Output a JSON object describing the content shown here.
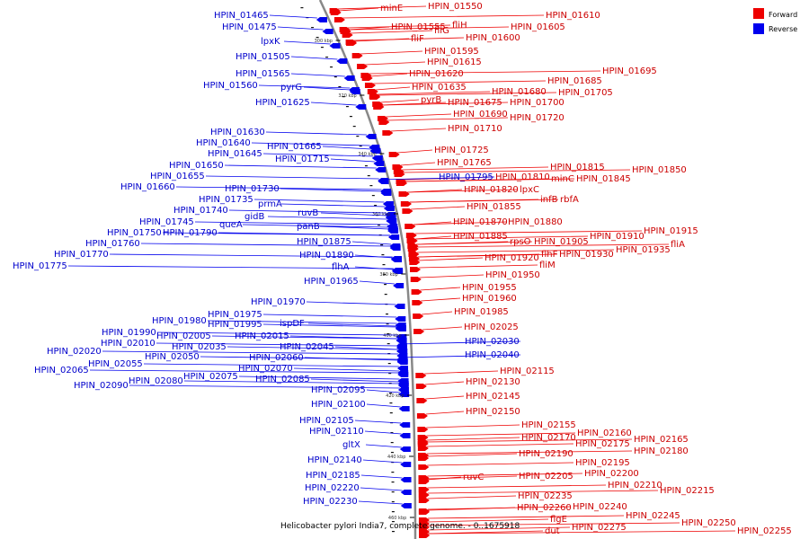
{
  "legend": {
    "forward": {
      "label": "Forward",
      "color": "#ee0000"
    },
    "reverse": {
      "label": "Reverse",
      "color": "#0000ee"
    }
  },
  "caption": "Helicobacter pylori India7, complete genome. - 0..1675918",
  "ticks": [
    "300 kbp",
    "320 kbp",
    "340 kbp",
    "360 kbp",
    "380 kbp",
    "400 kbp",
    "420 kbp",
    "440 kbp",
    "460 kbp"
  ],
  "forward_genes": [
    "minE",
    "HPIN_01550",
    "HPIN_01555",
    "fliG",
    "fliH",
    "fliF",
    "HPIN_01600",
    "HPIN_01610",
    "HPIN_01605",
    "HPIN_01595",
    "HPIN_01615",
    "HPIN_01620",
    "HPIN_01635",
    "HPIN_01695",
    "HPIN_01685",
    "HPIN_01680",
    "HPIN_01705",
    "pyrB",
    "HPIN_01675",
    "HPIN_01700",
    "HPIN_01690",
    "HPIN_01720",
    "HPIN_01710",
    "HPIN_01725",
    "HPIN_01765",
    "HPIN_01815",
    "HPIN_01850",
    "HPIN_01810",
    "minC",
    "HPIN_01845",
    "HPIN_01820",
    "lpxC",
    "infB",
    "rbfA",
    "HPIN_01855",
    "HPIN_01870",
    "HPIN_01880",
    "HPIN_01885",
    "HPIN_01915",
    "HPIN_01910",
    "rpsO",
    "HPIN_01905",
    "fliA",
    "flhF",
    "HPIN_01935",
    "HPIN_01920",
    "HPIN_01930",
    "fliM",
    "HPIN_01950",
    "HPIN_01955",
    "HPIN_01960",
    "HPIN_01985",
    "HPIN_02025",
    "HPIN_02115",
    "HPIN_02130",
    "HPIN_02145",
    "HPIN_02150",
    "HPIN_02155",
    "HPIN_02160",
    "HPIN_02170",
    "HPIN_02165",
    "HPIN_02175",
    "HPIN_02180",
    "HPIN_02190",
    "HPIN_02195",
    "ruvC",
    "HPIN_02205",
    "HPIN_02200",
    "HPIN_02210",
    "HPIN_02215",
    "HPIN_02235",
    "HPIN_02260",
    "HPIN_02240",
    "HPIN_02245",
    "flgE",
    "HPIN_02250",
    "HPIN_02275",
    "HPIN_02255",
    "dut"
  ],
  "reverse_genes": [
    "HPIN_01465",
    "HPIN_01475",
    "lpxK",
    "HPIN_01505",
    "HPIN_01565",
    "HPIN_01560",
    "pyrG",
    "HPIN_01625",
    "HPIN_01630",
    "HPIN_01640",
    "HPIN_01645",
    "HPIN_01665",
    "HPIN_01650",
    "HPIN_01715",
    "HPIN_01655",
    "HPIN_01660",
    "HPIN_01730",
    "HPIN_01735",
    "prmA",
    "HPIN_01740",
    "gidB",
    "ruvB",
    "HPIN_01745",
    "queA",
    "panB",
    "HPIN_01750",
    "HPIN_01790",
    "HPIN_01760",
    "HPIN_01770",
    "HPIN_01775",
    "HPIN_01795",
    "HPIN_01875",
    "HPIN_01890",
    "flhA",
    "HPIN_01965",
    "HPIN_01970",
    "HPIN_01975",
    "HPIN_01980",
    "HPIN_01995",
    "ispDF",
    "HPIN_01990",
    "HPIN_02005",
    "HPIN_02015",
    "HPIN_02010",
    "HPIN_02035",
    "HPIN_02045",
    "HPIN_02020",
    "HPIN_02050",
    "HPIN_02060",
    "HPIN_02055",
    "HPIN_02070",
    "HPIN_02065",
    "HPIN_02075",
    "HPIN_02085",
    "HPIN_02080",
    "HPIN_02090",
    "HPIN_02095",
    "HPIN_02100",
    "HPIN_02030",
    "HPIN_02040",
    "HPIN_02105",
    "HPIN_02110",
    "gltX",
    "HPIN_02140",
    "HPIN_02185",
    "HPIN_02220",
    "HPIN_02230"
  ]
}
